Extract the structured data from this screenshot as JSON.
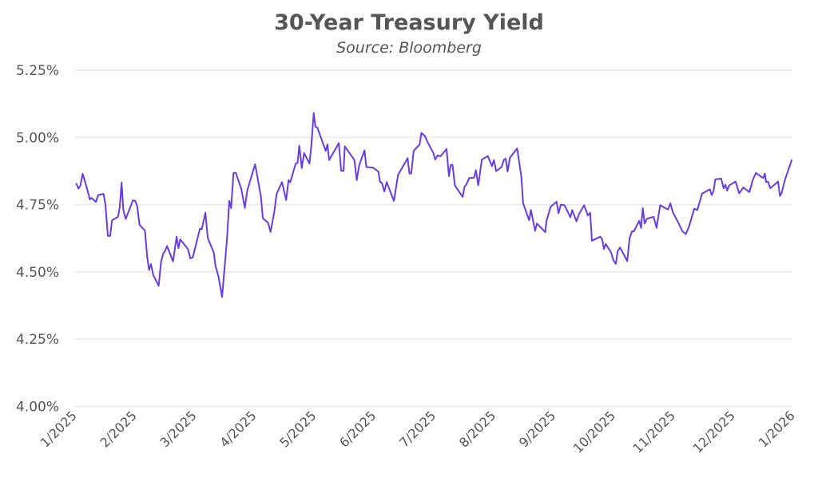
{
  "chart_data": {
    "type": "line",
    "title": "30-Year Treasury Yield",
    "subtitle": "Source: Bloomberg",
    "xlabel": "",
    "ylabel": "",
    "x_units": "months since 1/2025",
    "xlim": [
      0,
      12
    ],
    "ylim": [
      4.0,
      5.25
    ],
    "grid": true,
    "legend": "none",
    "color": "#6a3be0",
    "y_ticks": [
      4.0,
      4.25,
      4.5,
      4.75,
      5.0,
      5.25
    ],
    "y_tick_labels": [
      "4.00%",
      "4.25%",
      "4.50%",
      "4.75%",
      "5.00%",
      "5.25%"
    ],
    "x_tick_labels": [
      "1/2025",
      "2/2025",
      "3/2025",
      "4/2025",
      "5/2025",
      "6/2025",
      "7/2025",
      "8/2025",
      "9/2025",
      "10/2025",
      "11/2025",
      "12/2025",
      "1/2026"
    ],
    "series": [
      {
        "name": "30-Year Treasury Yield",
        "x": [
          0.03,
          0.07,
          0.1,
          0.14,
          0.2,
          0.26,
          0.29,
          0.36,
          0.4,
          0.49,
          0.52,
          0.56,
          0.6,
          0.63,
          0.73,
          0.76,
          0.79,
          0.82,
          0.86,
          0.98,
          1.02,
          1.05,
          1.09,
          1.18,
          1.22,
          1.25,
          1.28,
          1.32,
          1.41,
          1.45,
          1.49,
          1.51,
          1.55,
          1.65,
          1.71,
          1.74,
          1.77,
          1.9,
          1.94,
          1.98,
          2.1,
          2.13,
          2.19,
          2.23,
          2.33,
          2.36,
          2.41,
          2.47,
          2.55,
          2.59,
          2.62,
          2.66,
          2.7,
          2.79,
          2.85,
          2.89,
          3.02,
          3.04,
          3.12,
          3.15,
          3.24,
          3.28,
          3.34,
          3.38,
          3.47,
          3.54,
          3.58,
          3.61,
          3.7,
          3.73,
          3.76,
          3.8,
          3.84,
          3.93,
          3.96,
          4.0,
          4.03,
          4.06,
          4.2,
          4.23,
          4.26,
          4.42,
          4.46,
          4.5,
          4.52,
          4.68,
          4.72,
          4.76,
          4.85,
          4.88,
          4.99,
          5.08,
          5.11,
          5.14,
          5.18,
          5.22,
          5.34,
          5.41,
          5.57,
          5.6,
          5.63,
          5.67,
          5.77,
          5.8,
          5.86,
          5.9,
          6.0,
          6.03,
          6.07,
          6.12,
          6.22,
          6.26,
          6.29,
          6.32,
          6.36,
          6.49,
          6.52,
          6.55,
          6.6,
          6.68,
          6.71,
          6.75,
          6.81,
          6.91,
          6.98,
          7.01,
          7.05,
          7.14,
          7.18,
          7.21,
          7.24,
          7.28,
          7.4,
          7.47,
          7.5,
          7.6,
          7.63,
          7.7,
          7.73,
          7.87,
          7.89,
          7.96,
          8.06,
          8.09,
          8.13,
          8.19,
          8.29,
          8.32,
          8.39,
          8.43,
          8.52,
          8.58,
          8.62,
          8.65,
          8.79,
          8.82,
          8.85,
          8.88,
          8.97,
          9.01,
          9.05,
          9.08,
          9.12,
          9.24,
          9.28,
          9.32,
          9.35,
          9.44,
          9.47,
          9.5,
          9.53,
          9.57,
          9.68,
          9.73,
          9.79,
          9.92,
          9.96,
          10.0,
          10.1,
          10.16,
          10.22,
          10.27,
          10.36,
          10.41,
          10.49,
          10.62,
          10.65,
          10.68,
          10.71,
          10.81,
          10.85,
          10.88,
          10.91,
          10.94,
          11.05,
          11.11,
          11.18,
          11.28,
          11.34,
          11.39,
          11.51,
          11.54,
          11.56,
          11.59,
          11.63,
          11.76,
          11.79,
          11.82,
          11.87,
          11.99
        ],
        "y": [
          4.83,
          4.81,
          4.82,
          4.865,
          4.82,
          4.77,
          4.775,
          4.76,
          4.786,
          4.79,
          4.75,
          4.634,
          4.634,
          4.692,
          4.705,
          4.74,
          4.832,
          4.73,
          4.697,
          4.766,
          4.764,
          4.745,
          4.675,
          4.654,
          4.552,
          4.507,
          4.529,
          4.488,
          4.448,
          4.537,
          4.571,
          4.574,
          4.596,
          4.539,
          4.631,
          4.588,
          4.621,
          4.585,
          4.55,
          4.554,
          4.661,
          4.659,
          4.72,
          4.626,
          4.572,
          4.522,
          4.483,
          4.407,
          4.616,
          4.764,
          4.737,
          4.868,
          4.868,
          4.809,
          4.738,
          4.802,
          4.9,
          4.878,
          4.779,
          4.7,
          4.682,
          4.649,
          4.72,
          4.789,
          4.834,
          4.767,
          4.841,
          4.834,
          4.903,
          4.905,
          4.969,
          4.886,
          4.942,
          4.903,
          4.967,
          5.091,
          5.039,
          5.037,
          4.95,
          4.974,
          4.916,
          4.979,
          4.876,
          4.876,
          4.967,
          4.916,
          4.841,
          4.896,
          4.952,
          4.89,
          4.888,
          4.873,
          4.834,
          4.831,
          4.799,
          4.834,
          4.764,
          4.861,
          4.923,
          4.866,
          4.866,
          4.95,
          4.974,
          5.017,
          5.005,
          4.984,
          4.942,
          4.918,
          4.933,
          4.93,
          4.957,
          4.856,
          4.898,
          4.898,
          4.821,
          4.779,
          4.817,
          4.824,
          4.849,
          4.85,
          4.878,
          4.822,
          4.918,
          4.931,
          4.893,
          4.916,
          4.875,
          4.89,
          4.918,
          4.921,
          4.873,
          4.925,
          4.959,
          4.855,
          4.755,
          4.692,
          4.73,
          4.653,
          4.68,
          4.648,
          4.69,
          4.742,
          4.761,
          4.718,
          4.75,
          4.748,
          4.703,
          4.73,
          4.688,
          4.713,
          4.748,
          4.71,
          4.72,
          4.616,
          4.631,
          4.621,
          4.585,
          4.604,
          4.572,
          4.542,
          4.53,
          4.577,
          4.591,
          4.54,
          4.626,
          4.651,
          4.651,
          4.69,
          4.664,
          4.737,
          4.68,
          4.698,
          4.705,
          4.664,
          4.748,
          4.732,
          4.755,
          4.722,
          4.68,
          4.651,
          4.641,
          4.668,
          4.735,
          4.73,
          4.791,
          4.807,
          4.786,
          4.799,
          4.844,
          4.847,
          4.811,
          4.824,
          4.802,
          4.821,
          4.836,
          4.792,
          4.814,
          4.797,
          4.844,
          4.868,
          4.849,
          4.865,
          4.834,
          4.836,
          4.811,
          4.836,
          4.782,
          4.794,
          4.839,
          4.918
        ]
      }
    ]
  }
}
